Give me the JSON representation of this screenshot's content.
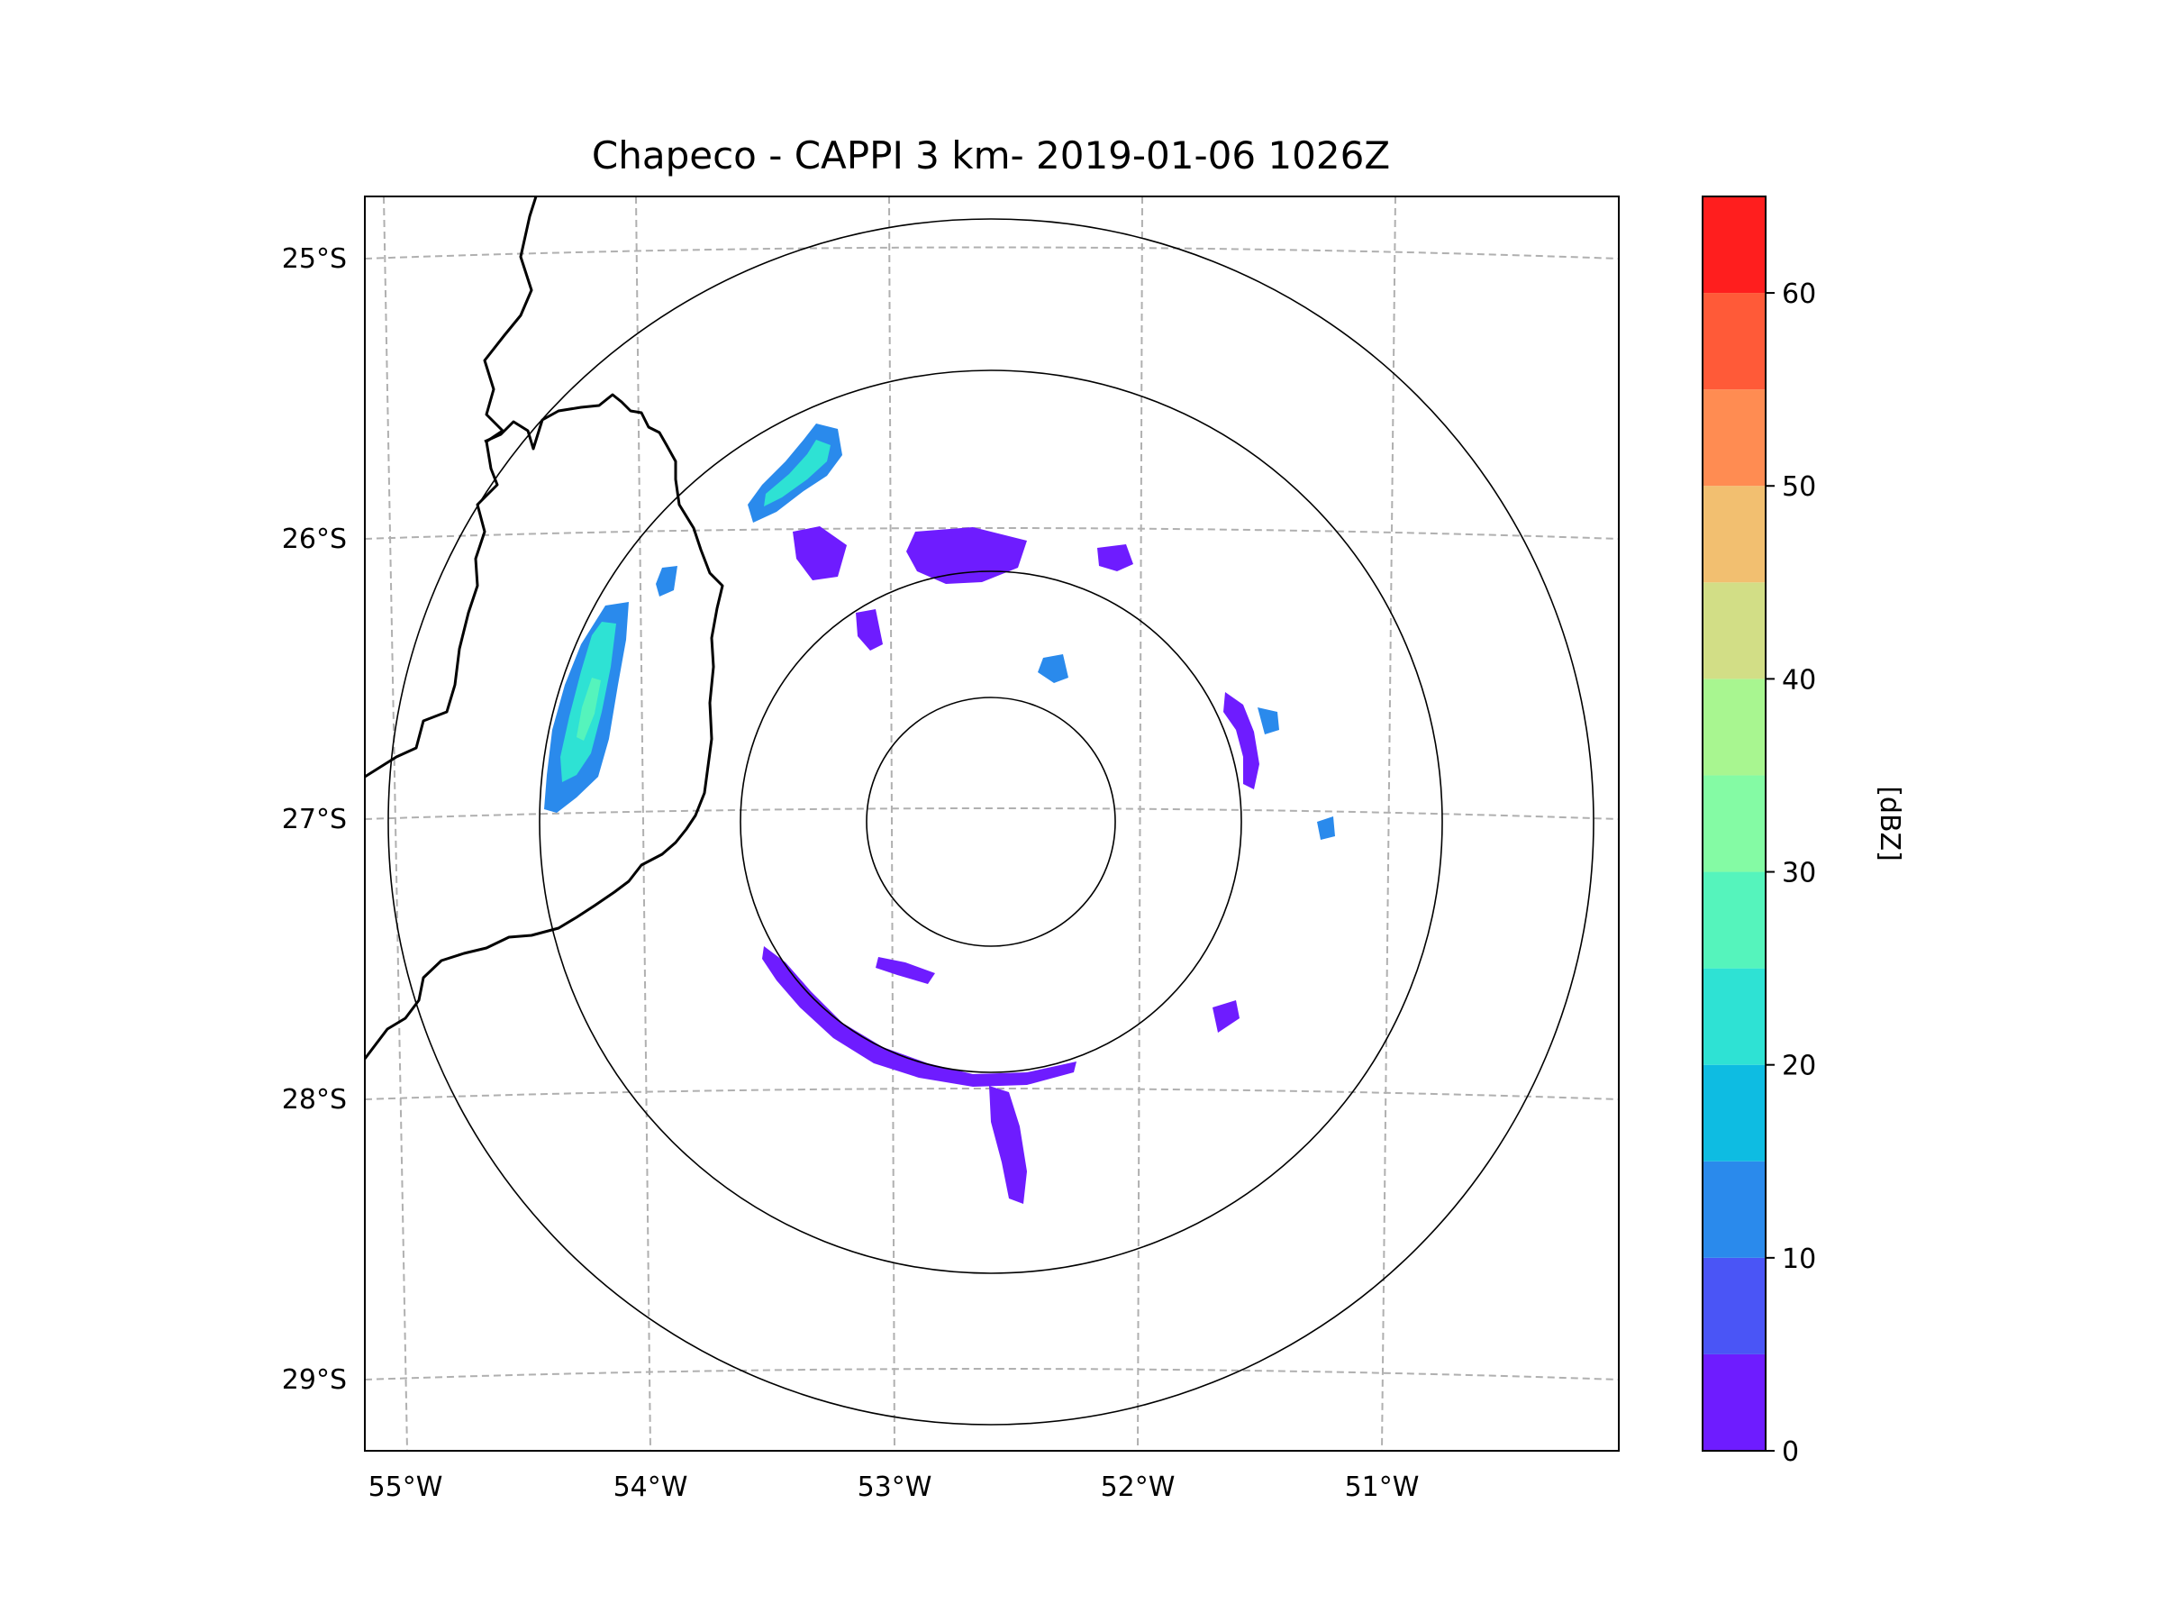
{
  "title": "Chapeco - CAPPI 3 km- 2019-01-06 1026Z",
  "map": {
    "lon_ticks": [
      "55°W",
      "54°W",
      "53°W",
      "52°W",
      "51°W"
    ],
    "lat_ticks": [
      "25°S",
      "26°S",
      "27°S",
      "28°S",
      "29°S"
    ],
    "range_rings": 4
  },
  "colorbar": {
    "label": "[dBZ]",
    "tick_labels": [
      "0",
      "10",
      "20",
      "30",
      "40",
      "50",
      "60"
    ],
    "min": 0,
    "max": 65,
    "step": 5,
    "colors": [
      "#6e1cff",
      "#4a55f6",
      "#2a8aec",
      "#0ebce2",
      "#2ee2d4",
      "#55f4bc",
      "#84fba4",
      "#a8f690",
      "#d2de86",
      "#f2bf70",
      "#ff8c52",
      "#ff5a38",
      "#ff1e1e"
    ]
  },
  "colors": {
    "grid": "#b0b0b0",
    "echo_light": "#6e1cff",
    "echo_moderate": "#2a8aec",
    "echo_strong": "#2ee2d4"
  }
}
